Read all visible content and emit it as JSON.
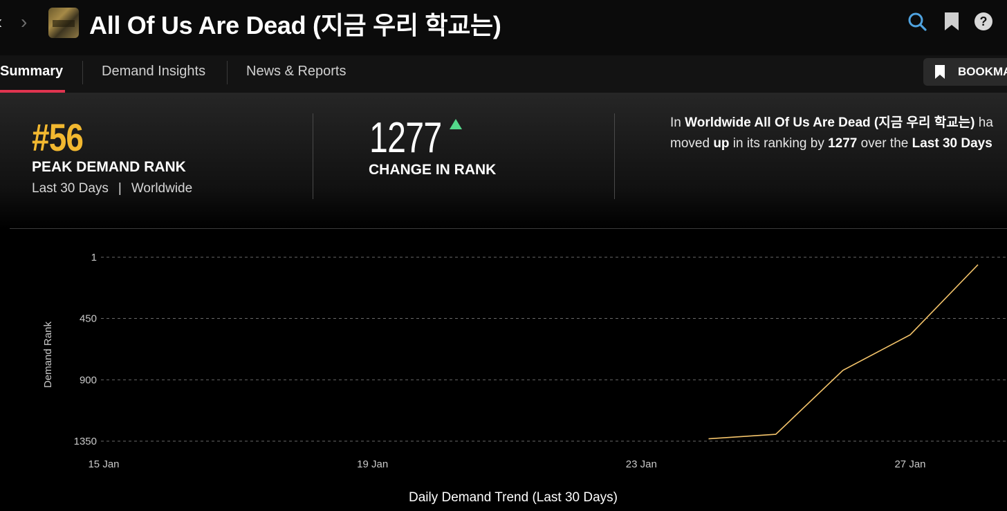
{
  "header": {
    "back_glyph": "‹",
    "forward_glyph": "›",
    "title": "All Of Us Are Dead (지금 우리 학교는)",
    "icons": [
      "search-icon",
      "bookmark-icon",
      "help-icon"
    ],
    "accent_color": "#4fa3e0"
  },
  "tabs": [
    {
      "label": "Summary",
      "active": true
    },
    {
      "label": "Demand Insights",
      "active": false
    },
    {
      "label": "News & Reports",
      "active": false
    }
  ],
  "bookmark_button": {
    "label": "BOOKMA"
  },
  "stats": {
    "peak_rank": "#56",
    "peak_rank_label": "PEAK DEMAND RANK",
    "period": "Last 30 Days",
    "separator": "|",
    "region": "Worldwide",
    "change_value": "1277",
    "change_label": "CHANGE IN RANK",
    "change_direction": "up",
    "rank_color": "#f2b830",
    "up_color": "#53d88a"
  },
  "description": {
    "line1_pre": "In ",
    "line1_bold": "Worldwide All Of Us Are Dead (지금 우리 학교는)",
    "line1_post": " ha",
    "line2_pre": "moved ",
    "line2_bold1": "up",
    "line2_mid": " in its ranking by ",
    "line2_bold2": "1277",
    "line2_mid2": " over the ",
    "line2_bold3": "Last 30 Days"
  },
  "chart_data": {
    "type": "line",
    "xlabel": "Daily Demand Trend (Last 30 Days)",
    "ylabel": "Demand Rank",
    "y_inverted": true,
    "ylim": [
      1,
      1350
    ],
    "yticks": [
      1,
      450,
      900,
      1350
    ],
    "x_tick_labels": [
      "15 Jan",
      "19 Jan",
      "23 Jan",
      "27 Jan"
    ],
    "x_tick_days": [
      15,
      19,
      23,
      27
    ],
    "xlim_days": [
      15,
      28
    ],
    "grid": true,
    "series": [
      {
        "line_color": "#f4c46b",
        "points": [
          {
            "day": 24,
            "rank": 1333
          },
          {
            "day": 25,
            "rank": 1300
          },
          {
            "day": 26,
            "rank": 830
          },
          {
            "day": 27,
            "rank": 570
          },
          {
            "day": 28,
            "rank": 56
          }
        ]
      }
    ]
  }
}
